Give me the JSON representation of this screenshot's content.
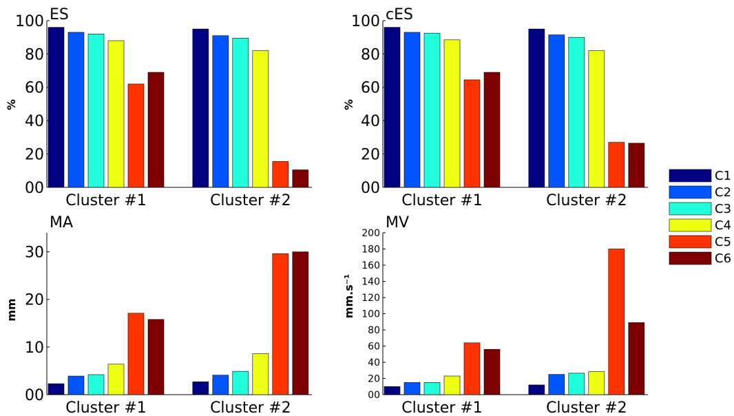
{
  "series_colors": [
    "#000080",
    "#0055ff",
    "#22ffdd",
    "#eeff11",
    "#ff3300",
    "#7f0000"
  ],
  "legend": {
    "items": [
      "C1",
      "C2",
      "C3",
      "C4",
      "C5",
      "C6"
    ]
  },
  "chart_data": [
    {
      "type": "bar",
      "title": "ES",
      "ylabel": "%",
      "categories": [
        "Cluster #1",
        "Cluster #2"
      ],
      "ylim": [
        0,
        100
      ],
      "yticks": [
        "00",
        "20",
        "40",
        "60",
        "80",
        "100"
      ],
      "yticks_values": [
        0,
        20,
        40,
        60,
        80,
        100
      ],
      "series": [
        {
          "name": "C1",
          "values": [
            96,
            95
          ]
        },
        {
          "name": "C2",
          "values": [
            93,
            91
          ]
        },
        {
          "name": "C3",
          "values": [
            92,
            89.5
          ]
        },
        {
          "name": "C4",
          "values": [
            88,
            82
          ]
        },
        {
          "name": "C5",
          "values": [
            62,
            15.5
          ]
        },
        {
          "name": "C6",
          "values": [
            69,
            10.5
          ]
        }
      ]
    },
    {
      "type": "bar",
      "title": "cES",
      "ylabel": "%",
      "categories": [
        "Cluster #1",
        "Cluster #2"
      ],
      "ylim": [
        0,
        100
      ],
      "yticks": [
        "00",
        "20",
        "40",
        "60",
        "80",
        "100"
      ],
      "yticks_values": [
        0,
        20,
        40,
        60,
        80,
        100
      ],
      "series": [
        {
          "name": "C1",
          "values": [
            96,
            95
          ]
        },
        {
          "name": "C2",
          "values": [
            93,
            91.5
          ]
        },
        {
          "name": "C3",
          "values": [
            92.5,
            90
          ]
        },
        {
          "name": "C4",
          "values": [
            88.5,
            82
          ]
        },
        {
          "name": "C5",
          "values": [
            64.5,
            27
          ]
        },
        {
          "name": "C6",
          "values": [
            69,
            26.5
          ]
        }
      ]
    },
    {
      "type": "bar",
      "title": "MA",
      "ylabel": "mm",
      "categories": [
        "Cluster #1",
        "Cluster #2"
      ],
      "ylim": [
        0,
        34
      ],
      "yticks": [
        "00",
        "10",
        "20",
        "30"
      ],
      "yticks_values": [
        0,
        10,
        20,
        30
      ],
      "series": [
        {
          "name": "C1",
          "values": [
            2.3,
            2.7
          ]
        },
        {
          "name": "C2",
          "values": [
            3.9,
            4.1
          ]
        },
        {
          "name": "C3",
          "values": [
            4.2,
            4.9
          ]
        },
        {
          "name": "C4",
          "values": [
            6.4,
            8.6
          ]
        },
        {
          "name": "C5",
          "values": [
            17.1,
            29.6
          ]
        },
        {
          "name": "C6",
          "values": [
            15.8,
            30
          ]
        }
      ]
    },
    {
      "type": "bar",
      "title": "MV",
      "ylabel": "mm.s⁻¹",
      "categories": [
        "Cluster #1",
        "Cluster #2"
      ],
      "ylim": [
        0,
        200
      ],
      "yticks": [
        "00",
        "20",
        "40",
        "60",
        "80",
        "100",
        "120",
        "140",
        "160",
        "180",
        "200"
      ],
      "yticks_values": [
        0,
        20,
        40,
        60,
        80,
        100,
        120,
        140,
        160,
        180,
        200
      ],
      "series": [
        {
          "name": "C1",
          "values": [
            10,
            12
          ]
        },
        {
          "name": "C2",
          "values": [
            15,
            25
          ]
        },
        {
          "name": "C3",
          "values": [
            15,
            26.5
          ]
        },
        {
          "name": "C4",
          "values": [
            23,
            28.5
          ]
        },
        {
          "name": "C5",
          "values": [
            64,
            180
          ]
        },
        {
          "name": "C6",
          "values": [
            56,
            89
          ]
        }
      ]
    }
  ]
}
